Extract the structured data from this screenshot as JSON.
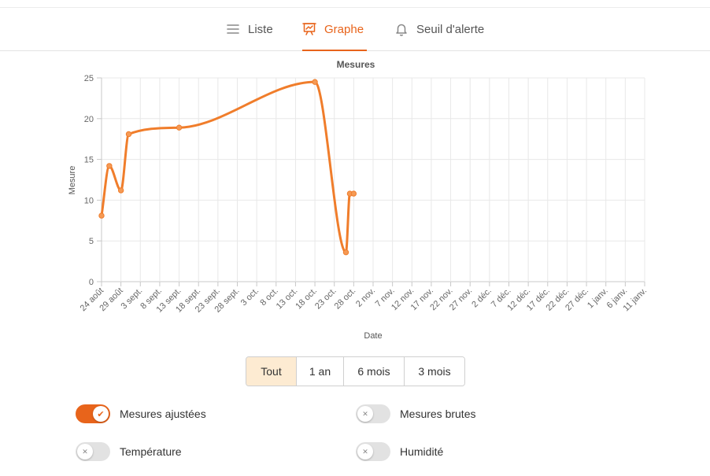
{
  "tabs": [
    {
      "label": "Liste",
      "icon": "list-icon"
    },
    {
      "label": "Graphe",
      "icon": "chart-icon"
    },
    {
      "label": "Seuil d'alerte",
      "icon": "bell-icon"
    }
  ],
  "accent_color": "#e8641b",
  "chart_data": {
    "type": "line",
    "title": "Mesures",
    "xlabel": "Date",
    "ylabel": "Mesure",
    "ylim": [
      0,
      25
    ],
    "yticks": [
      0,
      5,
      10,
      15,
      20,
      25
    ],
    "xticks": [
      "24 août",
      "29 août",
      "3 sept.",
      "8 sept.",
      "13 sept.",
      "18 sept.",
      "23 sept.",
      "28 sept.",
      "3 oct.",
      "8 oct.",
      "13 oct.",
      "18 oct.",
      "23 oct.",
      "28 oct.",
      "2 nov.",
      "7 nov.",
      "12 nov.",
      "17 nov.",
      "22 nov.",
      "27 nov.",
      "2 déc.",
      "7 déc.",
      "12 déc.",
      "17 déc.",
      "22 déc.",
      "27 déc.",
      "1 janv.",
      "6 janv.",
      "11 janv."
    ],
    "grid": true,
    "series": [
      {
        "color": "#f07d2b",
        "x": [
          "24 août",
          "26 août",
          "29 août",
          "31 août",
          "13 sept.",
          "18 oct.",
          "26 oct.",
          "27 oct.",
          "28 oct."
        ],
        "y": [
          8.1,
          14.2,
          11.2,
          18.1,
          18.9,
          24.5,
          3.6,
          10.8,
          10.8
        ]
      }
    ]
  },
  "range_buttons": {
    "all": "Tout",
    "year": "1 an",
    "six_months": "6 mois",
    "three_months": "3 mois"
  },
  "toggles": {
    "adjusted": "Mesures ajustées",
    "raw": "Mesures brutes",
    "temperature": "Température",
    "humidity": "Humidité"
  }
}
